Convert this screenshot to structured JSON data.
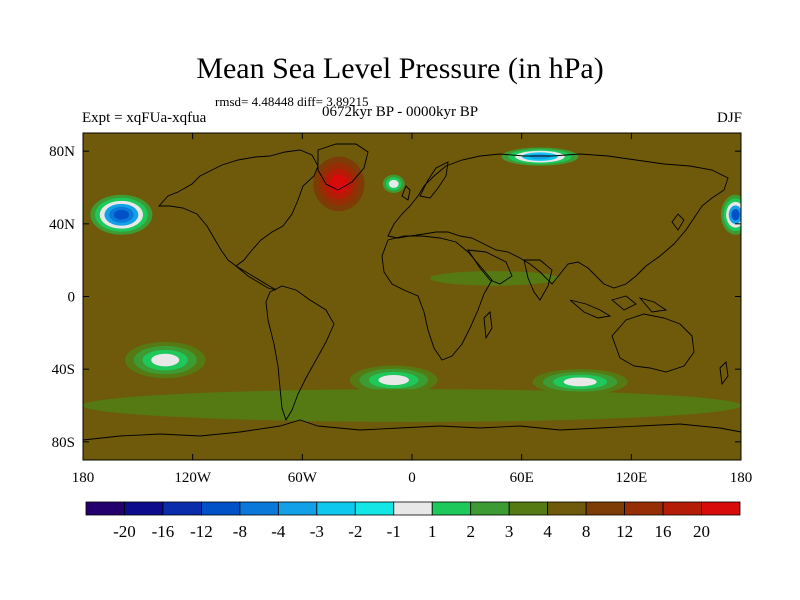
{
  "title": "Mean Sea Level Pressure (in hPa)",
  "stats": "rmsd= 4.48448 diff= 3.89215",
  "expt": "Expt = xqFUa-xqfua",
  "period": "0672kyr BP - 0000kyr BP",
  "season": "DJF",
  "chart_data": {
    "type": "heatmap",
    "title": "Mean Sea Level Pressure (in hPa)",
    "subtitle": "0672kyr BP - 0000kyr BP",
    "season": "DJF",
    "rmsd": 4.48448,
    "diff": 3.89215,
    "units": "hPa",
    "x_range": [
      -180,
      180
    ],
    "y_range": [
      -90,
      90
    ],
    "x_ticks": [
      {
        "value": -180,
        "label": "180"
      },
      {
        "value": -120,
        "label": "120W"
      },
      {
        "value": -60,
        "label": "60W"
      },
      {
        "value": 0,
        "label": "0"
      },
      {
        "value": 60,
        "label": "60E"
      },
      {
        "value": 120,
        "label": "120E"
      },
      {
        "value": 180,
        "label": "180"
      }
    ],
    "y_ticks": [
      {
        "value": 80,
        "label": "80N"
      },
      {
        "value": 40,
        "label": "40N"
      },
      {
        "value": 0,
        "label": "0"
      },
      {
        "value": -40,
        "label": "40S"
      },
      {
        "value": -80,
        "label": "80S"
      }
    ],
    "colorbar": {
      "colors": [
        "#23006e",
        "#0c0c8c",
        "#0a2dac",
        "#0050c8",
        "#0a78d8",
        "#14a0e6",
        "#0fc8ee",
        "#14e6e6",
        "#e8e8e8",
        "#1ec85a",
        "#3c9b32",
        "#557a14",
        "#6e5a0a",
        "#7d3c05",
        "#962d05",
        "#b41c07",
        "#d80a0a"
      ],
      "labels": [
        "-20",
        "-16",
        "-12",
        "-8",
        "-4",
        "-3",
        "-2",
        "-1",
        "1",
        "2",
        "3",
        "4",
        "8",
        "12",
        "16",
        "20"
      ]
    },
    "background_level": "4 to 8",
    "regions": [
      {
        "name": "north-pacific-low",
        "lon": -159,
        "lat": 45,
        "rlon": 17,
        "rlat": 11,
        "levels": [
          "#3c9b32",
          "#1ec85a",
          "#e8e8e8",
          "#14a0e6",
          "#0a78d8",
          "#0050c8"
        ]
      },
      {
        "name": "north-pacific-low-east",
        "lon": 177,
        "lat": 45,
        "rlon": 8,
        "rlat": 11,
        "levels": [
          "#3c9b32",
          "#1ec85a",
          "#e8e8e8",
          "#14a0e6",
          "#0050c8"
        ]
      },
      {
        "name": "north-atlantic-high",
        "lon": -40,
        "lat": 62,
        "rlon": 14,
        "rlat": 15,
        "levels": [
          "#7d3c05",
          "#962d05",
          "#b41c07",
          "#d80a0a"
        ]
      },
      {
        "name": "arctic-siberia-low",
        "lon": 70,
        "lat": 77,
        "rlon": 21,
        "rlat": 5,
        "levels": [
          "#3c9b32",
          "#1ec85a",
          "#e8e8e8",
          "#0fc8ee",
          "#14a0e6"
        ]
      },
      {
        "name": "norwegian-sea-low",
        "lon": -10,
        "lat": 62,
        "rlon": 6,
        "rlat": 5,
        "levels": [
          "#3c9b32",
          "#1ec85a",
          "#e8e8e8"
        ]
      },
      {
        "name": "south-pacific-low",
        "lon": -135,
        "lat": -35,
        "rlon": 22,
        "rlat": 10,
        "levels": [
          "#557a14",
          "#3c9b32",
          "#1ec85a",
          "#e8e8e8"
        ]
      },
      {
        "name": "south-atlantic-low",
        "lon": -10,
        "lat": -46,
        "rlon": 24,
        "rlat": 8,
        "levels": [
          "#557a14",
          "#3c9b32",
          "#1ec85a",
          "#e8e8e8"
        ]
      },
      {
        "name": "south-indian-low",
        "lon": 92,
        "lat": -47,
        "rlon": 26,
        "rlat": 7,
        "levels": [
          "#557a14",
          "#3c9b32",
          "#1ec85a",
          "#e8e8e8"
        ]
      },
      {
        "name": "tropical-indian-green",
        "lon": 45,
        "lat": 10,
        "rlon": 35,
        "rlat": 4,
        "levels": [
          "#557a14"
        ]
      },
      {
        "name": "southern-ocean-band",
        "lon": 0,
        "lat": -60,
        "rlon": 180,
        "rlat": 9,
        "levels": [
          "#557a14"
        ]
      }
    ]
  }
}
